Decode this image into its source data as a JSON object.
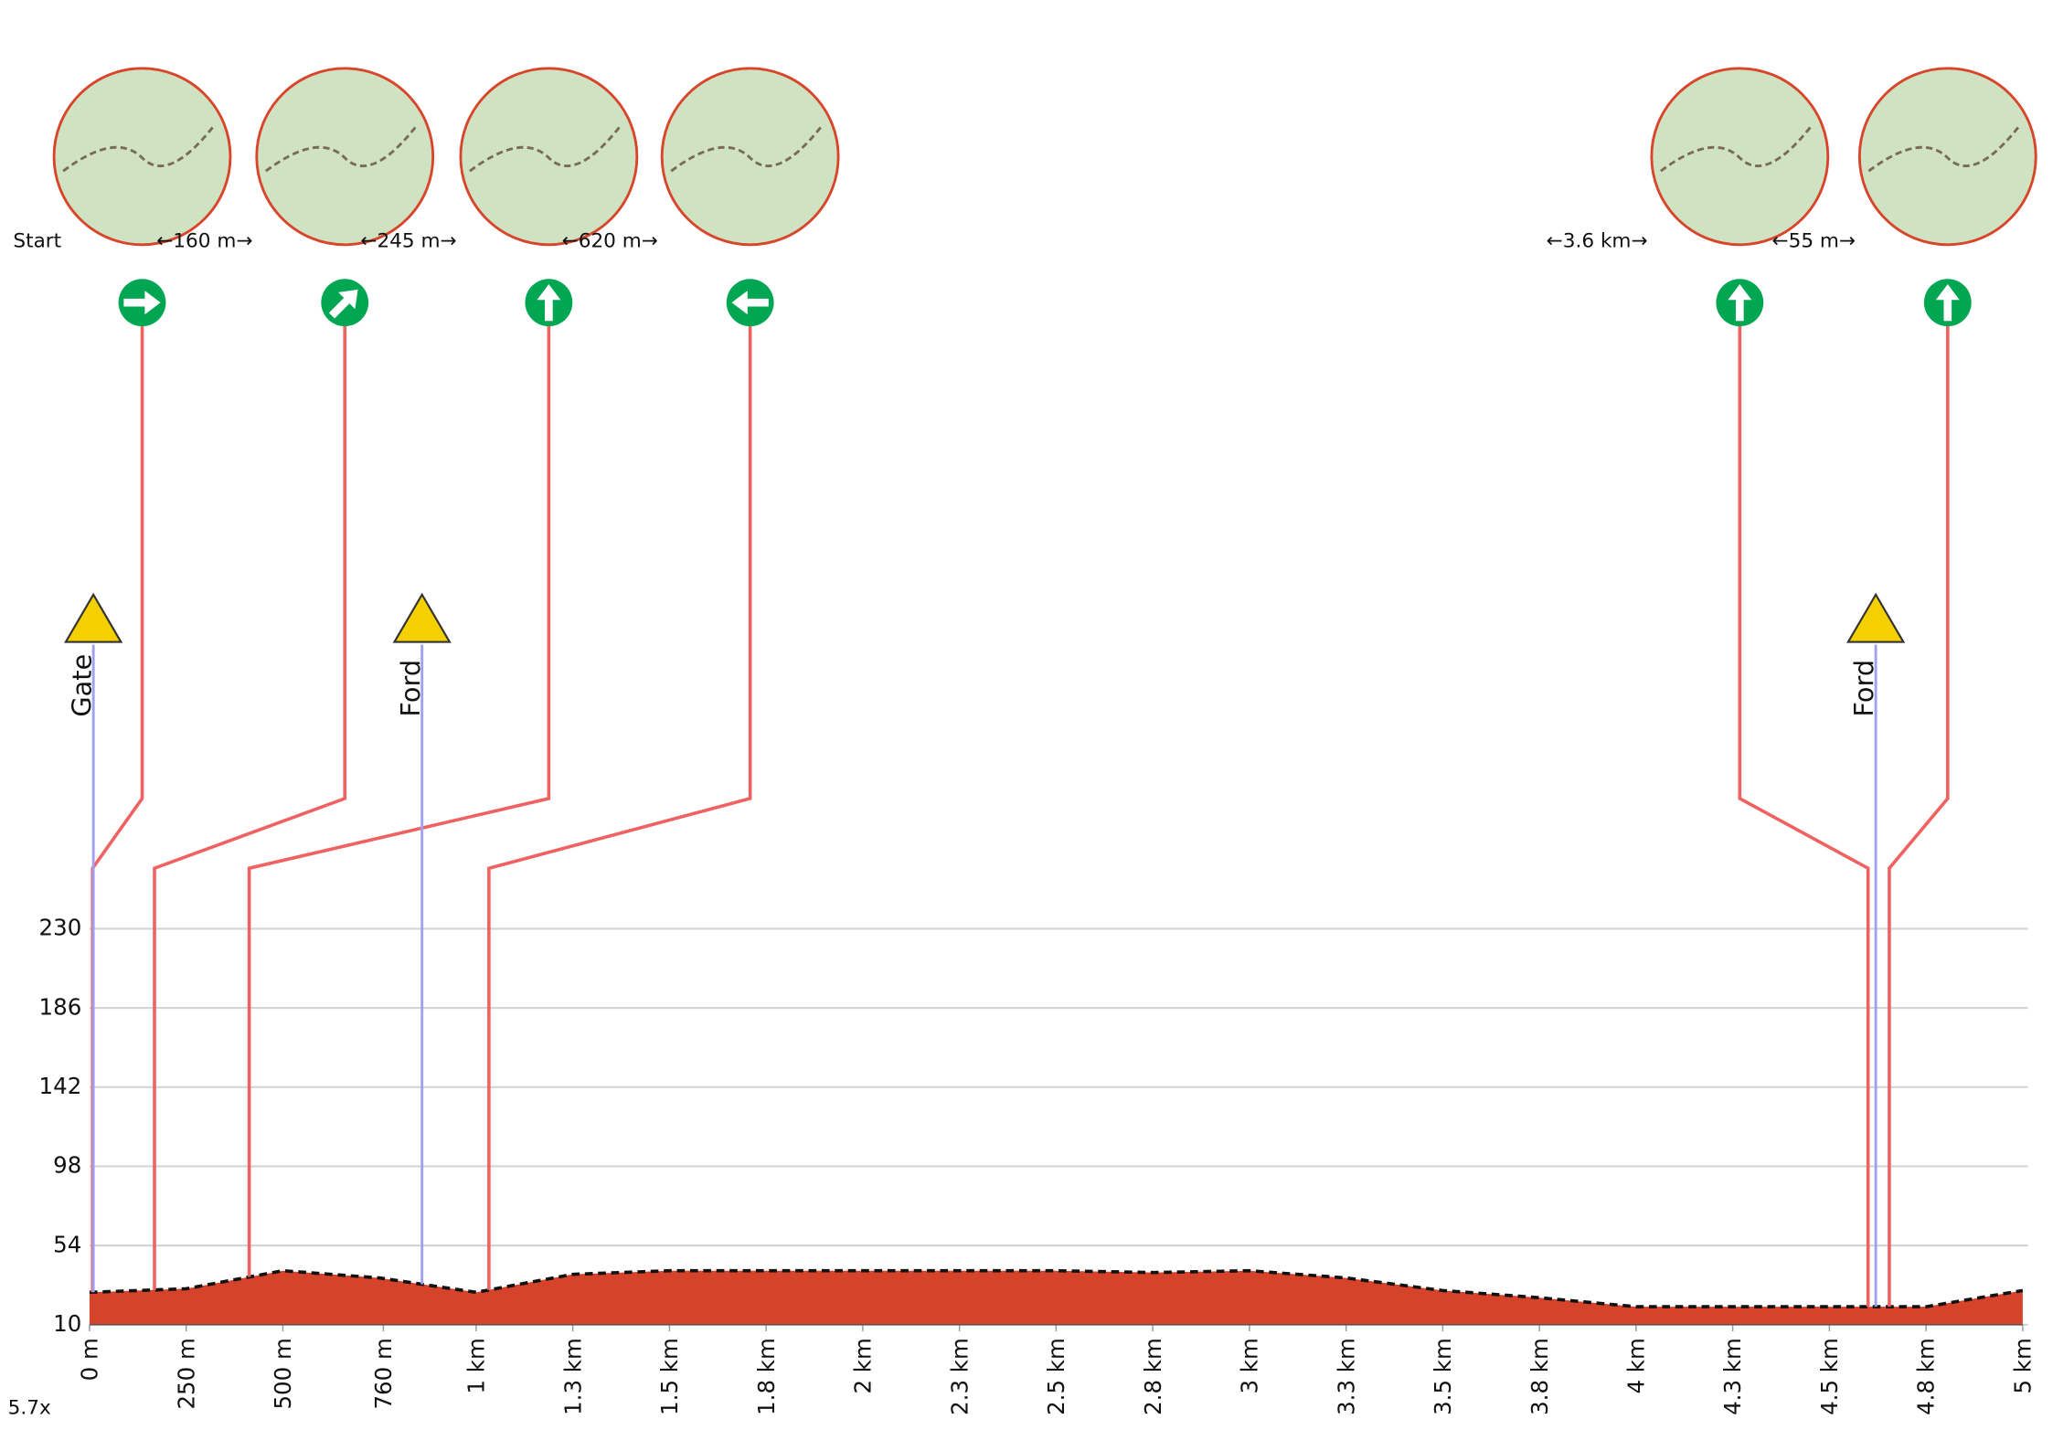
{
  "chart_data": {
    "type": "area",
    "x": [
      0,
      250,
      500,
      750,
      1000,
      1250,
      1500,
      1750,
      2000,
      2250,
      2500,
      2750,
      3000,
      3250,
      3500,
      3750,
      4000,
      4250,
      4500,
      4750,
      5000
    ],
    "values": [
      28,
      30,
      40,
      36,
      28,
      38,
      40,
      40,
      40,
      40,
      40,
      39,
      40,
      36,
      29,
      25,
      20,
      20,
      20,
      20,
      29
    ],
    "color": "#d4432a",
    "xlim": [
      0,
      5000
    ],
    "ylim": [
      10,
      230
    ],
    "xticks": [
      {
        "value": 0,
        "label": "0 m"
      },
      {
        "value": 250,
        "label": "250 m"
      },
      {
        "value": 500,
        "label": "500 m"
      },
      {
        "value": 760,
        "label": "760 m"
      },
      {
        "value": 1000,
        "label": "1 km"
      },
      {
        "value": 1250,
        "label": "1.3 km"
      },
      {
        "value": 1500,
        "label": "1.5 km"
      },
      {
        "value": 1750,
        "label": "1.8 km"
      },
      {
        "value": 2000,
        "label": "2 km"
      },
      {
        "value": 2250,
        "label": "2.3 km"
      },
      {
        "value": 2500,
        "label": "2.5 km"
      },
      {
        "value": 2750,
        "label": "2.8 km"
      },
      {
        "value": 3000,
        "label": "3 km"
      },
      {
        "value": 3250,
        "label": "3.3 km"
      },
      {
        "value": 3500,
        "label": "3.5 km"
      },
      {
        "value": 3750,
        "label": "3.8 km"
      },
      {
        "value": 4000,
        "label": "4 km"
      },
      {
        "value": 4250,
        "label": "4.3 km"
      },
      {
        "value": 4500,
        "label": "4.5 km"
      },
      {
        "value": 4750,
        "label": "4.8 km"
      },
      {
        "value": 5000,
        "label": "5 km"
      }
    ],
    "yticks": [
      10,
      54,
      98,
      142,
      186,
      230
    ],
    "grid": true,
    "turns": [
      {
        "label": "Start",
        "x": 8
      },
      {
        "label": "←160 m→",
        "x": 168
      },
      {
        "label": "←245 m→",
        "x": 413
      },
      {
        "label": "←620 m→",
        "x": 1033
      },
      {
        "label": "←3.6 km→",
        "x": 4600
      },
      {
        "label": "←55 m→",
        "x": 4655
      }
    ],
    "hazards": [
      {
        "label": "Gate",
        "x": 10
      },
      {
        "label": "Ford",
        "x": 860
      },
      {
        "label": "Ford",
        "x": 4620
      }
    ],
    "zoom_label": "5.7x"
  }
}
